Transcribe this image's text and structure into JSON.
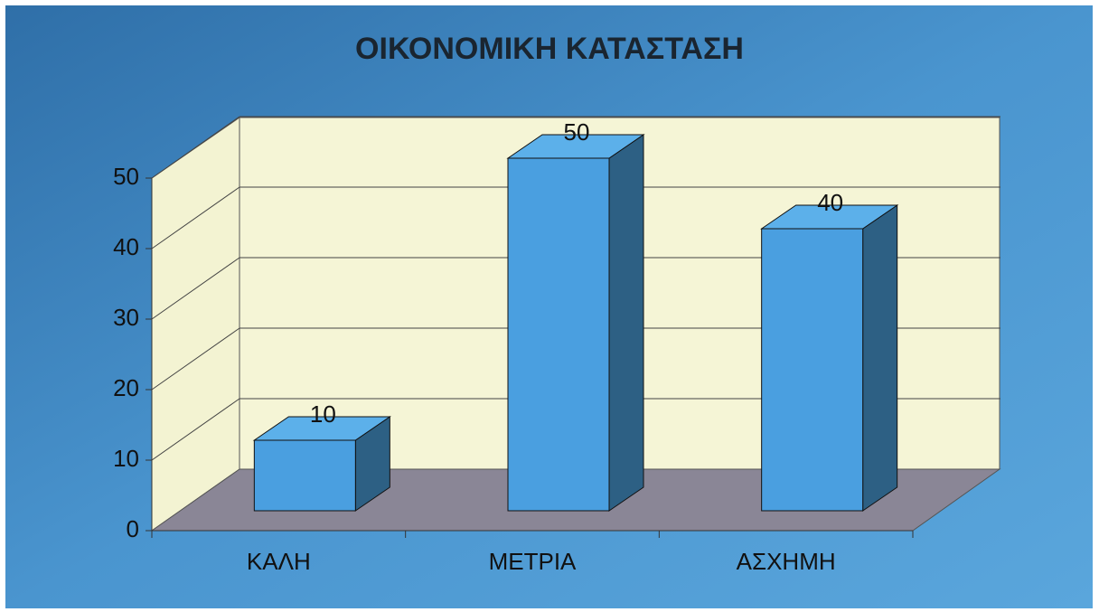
{
  "chart_data": {
    "type": "bar3d",
    "title": "ΟΙΚΟΝΟΜΙΚΗ ΚΑΤΑΣΤΑΣΗ",
    "categories": [
      "ΚΑΛΗ",
      "ΜΕΤΡΙΑ",
      "ΑΣΧΗΜΗ"
    ],
    "values": [
      10,
      50,
      40
    ],
    "color": "#4a9fe0",
    "ylim": [
      0,
      50
    ],
    "yticks": [
      0,
      10,
      20,
      30,
      40,
      50
    ],
    "grid": true
  }
}
